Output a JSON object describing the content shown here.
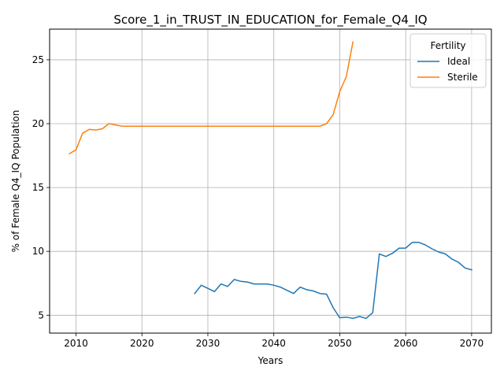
{
  "chart_data": {
    "type": "line",
    "title": "Score_1_in_TRUST_IN_EDUCATION_for_Female_Q4_IQ",
    "xlabel": "Years",
    "ylabel": "% of Female Q4_IQ Population",
    "xlim": [
      2006,
      2073
    ],
    "ylim": [
      3.6,
      27.4
    ],
    "xticks": [
      2010,
      2020,
      2030,
      2040,
      2050,
      2060,
      2070
    ],
    "yticks": [
      5,
      10,
      15,
      20,
      25
    ],
    "grid": true,
    "legend": {
      "title": "Fertility",
      "placement": "top-right"
    },
    "series": [
      {
        "name": "Ideal",
        "color": "#1f77b4",
        "x": [
          2028,
          2029,
          2030,
          2031,
          2032,
          2033,
          2034,
          2035,
          2036,
          2037,
          2038,
          2039,
          2040,
          2041,
          2042,
          2043,
          2044,
          2045,
          2046,
          2047,
          2048,
          2049,
          2050,
          2051,
          2052,
          2053,
          2054,
          2055,
          2056,
          2057,
          2058,
          2059,
          2060,
          2061,
          2062,
          2063,
          2064,
          2065,
          2066,
          2067,
          2068,
          2069,
          2070
        ],
        "values": [
          6.7,
          7.35,
          7.1,
          6.85,
          7.45,
          7.25,
          7.8,
          7.65,
          7.6,
          7.45,
          7.45,
          7.45,
          7.35,
          7.2,
          6.95,
          6.7,
          7.2,
          7.0,
          6.9,
          6.7,
          6.65,
          5.6,
          4.8,
          4.85,
          4.75,
          4.9,
          4.75,
          5.2,
          9.8,
          9.6,
          9.85,
          10.25,
          10.25,
          10.7,
          10.7,
          10.5,
          10.2,
          9.95,
          9.8,
          9.4,
          9.15,
          8.7,
          8.55
        ]
      },
      {
        "name": "Sterile",
        "color": "#ff7f0e",
        "x": [
          2009,
          2010,
          2011,
          2012,
          2013,
          2014,
          2015,
          2016,
          2017,
          2018,
          2019,
          2020,
          2021,
          2022,
          2023,
          2024,
          2025,
          2026,
          2027,
          2028,
          2029,
          2030,
          2031,
          2032,
          2033,
          2034,
          2035,
          2036,
          2037,
          2038,
          2039,
          2040,
          2041,
          2042,
          2043,
          2044,
          2045,
          2046,
          2047,
          2048,
          2049,
          2050,
          2051,
          2052
        ],
        "values": [
          17.65,
          17.95,
          19.25,
          19.55,
          19.5,
          19.6,
          20.0,
          19.9,
          19.8,
          19.8,
          19.8,
          19.8,
          19.8,
          19.8,
          19.8,
          19.8,
          19.8,
          19.8,
          19.8,
          19.8,
          19.8,
          19.8,
          19.8,
          19.8,
          19.8,
          19.8,
          19.8,
          19.8,
          19.8,
          19.8,
          19.8,
          19.8,
          19.8,
          19.8,
          19.8,
          19.8,
          19.8,
          19.8,
          19.8,
          20.0,
          20.7,
          22.5,
          23.7,
          26.4
        ]
      }
    ]
  }
}
